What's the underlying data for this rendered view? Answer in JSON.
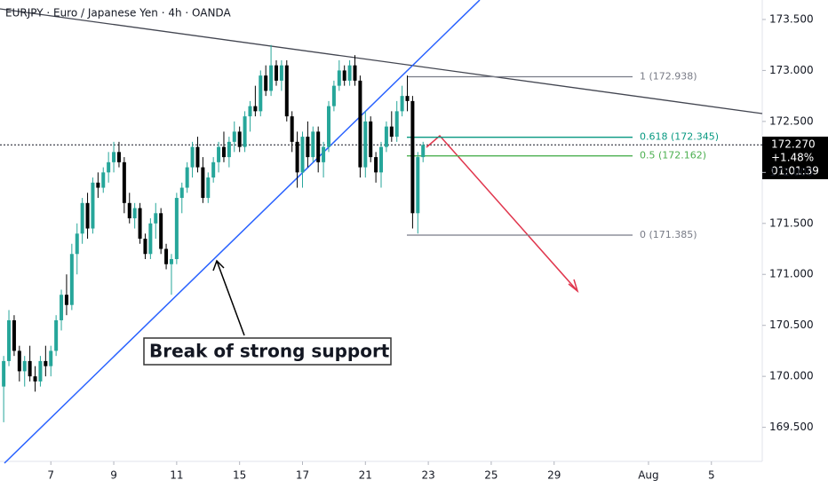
{
  "chart_data": {
    "type": "candlestick",
    "title": "EURJPY · Euro / Japanese Yen · 4h · OANDA",
    "up_color": "#26a69a",
    "down_color": "#000000",
    "open": [
      169.9,
      170.15,
      170.55,
      170.25,
      170.05,
      170.15,
      170.0,
      169.95,
      170.15,
      170.1,
      170.25,
      170.55,
      170.8,
      170.7,
      171.2,
      171.4,
      171.7,
      171.45,
      171.9,
      171.85,
      172.0,
      172.1,
      172.2,
      172.1,
      171.7,
      171.55,
      171.65,
      171.35,
      171.2,
      171.5,
      171.6,
      171.25,
      171.1,
      171.15,
      171.75,
      171.85,
      172.05,
      172.25,
      172.05,
      171.75,
      171.95,
      172.1,
      172.25,
      172.15,
      172.3,
      172.4,
      172.25,
      172.55,
      172.65,
      172.6,
      172.95,
      172.8,
      173.05,
      172.9,
      173.05,
      172.55,
      172.3,
      172.0,
      172.35,
      172.15,
      172.4,
      172.1,
      172.25,
      172.65,
      172.85,
      173.0,
      172.9,
      173.05,
      172.9,
      172.05,
      172.5,
      172.15,
      172.0,
      172.25,
      172.45,
      172.35,
      172.6,
      172.75,
      172.7,
      171.6,
      172.15
    ],
    "high": [
      170.2,
      170.65,
      170.6,
      170.3,
      170.2,
      170.3,
      170.1,
      170.2,
      170.3,
      170.3,
      170.6,
      170.85,
      171.0,
      171.3,
      171.5,
      171.75,
      171.8,
      171.95,
      172.0,
      172.05,
      172.2,
      172.3,
      172.3,
      172.15,
      171.8,
      171.7,
      171.7,
      171.4,
      171.55,
      171.7,
      171.65,
      171.3,
      171.2,
      171.8,
      171.9,
      172.1,
      172.3,
      172.35,
      172.15,
      172.0,
      172.15,
      172.3,
      172.4,
      172.35,
      172.5,
      172.45,
      172.6,
      172.7,
      172.85,
      173.0,
      173.05,
      173.25,
      173.1,
      173.1,
      173.1,
      172.6,
      172.4,
      172.4,
      172.5,
      172.45,
      172.45,
      172.3,
      172.7,
      172.9,
      173.1,
      173.05,
      173.1,
      173.15,
      172.95,
      172.6,
      172.55,
      172.2,
      172.3,
      172.5,
      172.6,
      172.7,
      172.85,
      172.95,
      172.75,
      172.2,
      172.3
    ],
    "low": [
      169.55,
      170.1,
      170.2,
      169.95,
      169.9,
      169.95,
      169.85,
      169.9,
      170.0,
      170.0,
      170.2,
      170.45,
      170.6,
      170.65,
      171.0,
      171.3,
      171.35,
      171.4,
      171.75,
      171.8,
      171.9,
      172.0,
      172.05,
      171.6,
      171.5,
      171.45,
      171.3,
      171.15,
      171.15,
      171.35,
      171.2,
      171.05,
      170.8,
      171.1,
      171.6,
      171.8,
      171.95,
      172.0,
      171.7,
      171.7,
      171.9,
      172.0,
      172.1,
      172.05,
      172.2,
      172.2,
      172.2,
      172.4,
      172.55,
      172.55,
      172.75,
      172.75,
      172.85,
      172.8,
      172.5,
      172.2,
      171.85,
      171.85,
      172.05,
      172.1,
      172.0,
      171.95,
      172.2,
      172.6,
      172.8,
      172.85,
      172.85,
      172.85,
      171.95,
      171.95,
      172.1,
      171.9,
      171.85,
      172.2,
      172.3,
      172.3,
      172.55,
      172.6,
      171.45,
      171.4,
      172.1
    ],
    "close": [
      170.15,
      170.55,
      170.25,
      170.05,
      170.15,
      170.0,
      169.95,
      170.15,
      170.1,
      170.25,
      170.55,
      170.8,
      170.7,
      171.2,
      171.4,
      171.7,
      171.45,
      171.9,
      171.85,
      172.0,
      172.1,
      172.2,
      172.1,
      171.7,
      171.55,
      171.65,
      171.35,
      171.2,
      171.5,
      171.6,
      171.25,
      171.1,
      171.15,
      171.75,
      171.85,
      172.05,
      172.25,
      172.05,
      171.75,
      171.95,
      172.1,
      172.25,
      172.15,
      172.3,
      172.4,
      172.25,
      172.55,
      172.65,
      172.6,
      172.95,
      172.8,
      173.05,
      172.9,
      173.05,
      172.55,
      172.3,
      172.0,
      172.35,
      172.15,
      172.4,
      172.1,
      172.25,
      172.65,
      172.85,
      173.0,
      172.9,
      173.05,
      172.9,
      172.05,
      172.5,
      172.15,
      172.0,
      172.25,
      172.45,
      172.35,
      172.6,
      172.75,
      172.7,
      171.6,
      172.15,
      172.27
    ],
    "xlim": [
      -0.7,
      144.7
    ],
    "xticks": [
      {
        "value": 9,
        "label": "7"
      },
      {
        "value": 21,
        "label": "9"
      },
      {
        "value": 33,
        "label": "11"
      },
      {
        "value": 45,
        "label": "15"
      },
      {
        "value": 57,
        "label": "17"
      },
      {
        "value": 69,
        "label": "21"
      },
      {
        "value": 81,
        "label": "23"
      },
      {
        "value": 93,
        "label": "25"
      },
      {
        "value": 105,
        "label": "29"
      },
      {
        "value": 123,
        "label": "Aug"
      },
      {
        "value": 135,
        "label": "5"
      }
    ],
    "ylim": [
      169.166,
      173.691
    ],
    "yticks": [
      {
        "value": 169.5,
        "label": "169.500"
      },
      {
        "value": 170,
        "label": "170.000"
      },
      {
        "value": 170.5,
        "label": "170.500"
      },
      {
        "value": 171,
        "label": "171.000"
      },
      {
        "value": 171.5,
        "label": "171.500"
      },
      {
        "value": 172,
        "label": "172.000"
      },
      {
        "value": 172.5,
        "label": "172.500"
      },
      {
        "value": 173,
        "label": "173.000"
      },
      {
        "value": 173.5,
        "label": "173.500"
      }
    ],
    "last_price": {
      "value": 172.27,
      "label": "172.270"
    },
    "change": "+1.48%",
    "countdown": "01:01:39",
    "fib_levels": [
      {
        "value": 172.938,
        "label": "1 (172.938)",
        "color": "#787b86"
      },
      {
        "value": 172.345,
        "label": "0.618 (172.345)",
        "color": "#089981"
      },
      {
        "value": 172.162,
        "label": "0.5 (172.162)",
        "color": "#4caf50"
      },
      {
        "value": 171.385,
        "label": "0 (171.385)",
        "color": "#787b86"
      }
    ],
    "annotation": "Break of strong support"
  }
}
